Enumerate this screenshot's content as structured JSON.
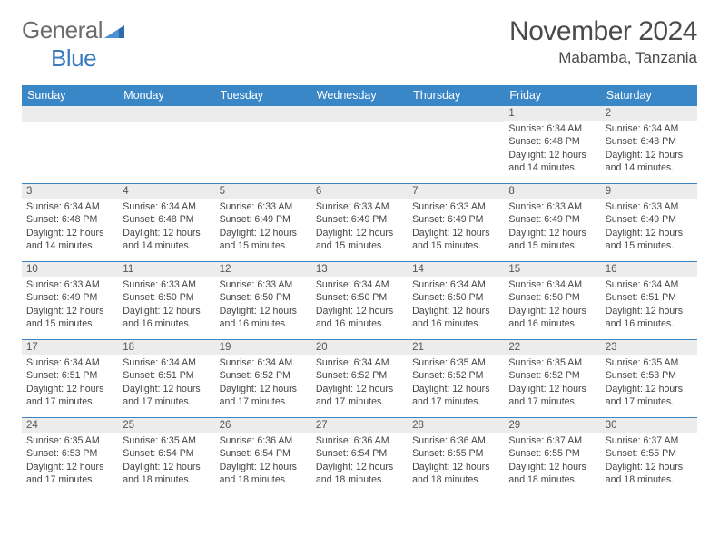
{
  "logo": {
    "text1": "General",
    "text2": "Blue"
  },
  "title": "November 2024",
  "location": "Mabamba, Tanzania",
  "colors": {
    "header_bg": "#3a87c7",
    "header_text": "#ffffff",
    "row_border": "#3a87c7",
    "daynum_bg": "#ececec",
    "body_text": "#444444",
    "logo_gray": "#6c6c6c",
    "logo_blue": "#3a7bbf"
  },
  "days_of_week": [
    "Sunday",
    "Monday",
    "Tuesday",
    "Wednesday",
    "Thursday",
    "Friday",
    "Saturday"
  ],
  "weeks": [
    [
      {
        "n": "",
        "sr": "",
        "ss": "",
        "dl": ""
      },
      {
        "n": "",
        "sr": "",
        "ss": "",
        "dl": ""
      },
      {
        "n": "",
        "sr": "",
        "ss": "",
        "dl": ""
      },
      {
        "n": "",
        "sr": "",
        "ss": "",
        "dl": ""
      },
      {
        "n": "",
        "sr": "",
        "ss": "",
        "dl": ""
      },
      {
        "n": "1",
        "sr": "Sunrise: 6:34 AM",
        "ss": "Sunset: 6:48 PM",
        "dl": "Daylight: 12 hours and 14 minutes."
      },
      {
        "n": "2",
        "sr": "Sunrise: 6:34 AM",
        "ss": "Sunset: 6:48 PM",
        "dl": "Daylight: 12 hours and 14 minutes."
      }
    ],
    [
      {
        "n": "3",
        "sr": "Sunrise: 6:34 AM",
        "ss": "Sunset: 6:48 PM",
        "dl": "Daylight: 12 hours and 14 minutes."
      },
      {
        "n": "4",
        "sr": "Sunrise: 6:34 AM",
        "ss": "Sunset: 6:48 PM",
        "dl": "Daylight: 12 hours and 14 minutes."
      },
      {
        "n": "5",
        "sr": "Sunrise: 6:33 AM",
        "ss": "Sunset: 6:49 PM",
        "dl": "Daylight: 12 hours and 15 minutes."
      },
      {
        "n": "6",
        "sr": "Sunrise: 6:33 AM",
        "ss": "Sunset: 6:49 PM",
        "dl": "Daylight: 12 hours and 15 minutes."
      },
      {
        "n": "7",
        "sr": "Sunrise: 6:33 AM",
        "ss": "Sunset: 6:49 PM",
        "dl": "Daylight: 12 hours and 15 minutes."
      },
      {
        "n": "8",
        "sr": "Sunrise: 6:33 AM",
        "ss": "Sunset: 6:49 PM",
        "dl": "Daylight: 12 hours and 15 minutes."
      },
      {
        "n": "9",
        "sr": "Sunrise: 6:33 AM",
        "ss": "Sunset: 6:49 PM",
        "dl": "Daylight: 12 hours and 15 minutes."
      }
    ],
    [
      {
        "n": "10",
        "sr": "Sunrise: 6:33 AM",
        "ss": "Sunset: 6:49 PM",
        "dl": "Daylight: 12 hours and 15 minutes."
      },
      {
        "n": "11",
        "sr": "Sunrise: 6:33 AM",
        "ss": "Sunset: 6:50 PM",
        "dl": "Daylight: 12 hours and 16 minutes."
      },
      {
        "n": "12",
        "sr": "Sunrise: 6:33 AM",
        "ss": "Sunset: 6:50 PM",
        "dl": "Daylight: 12 hours and 16 minutes."
      },
      {
        "n": "13",
        "sr": "Sunrise: 6:34 AM",
        "ss": "Sunset: 6:50 PM",
        "dl": "Daylight: 12 hours and 16 minutes."
      },
      {
        "n": "14",
        "sr": "Sunrise: 6:34 AM",
        "ss": "Sunset: 6:50 PM",
        "dl": "Daylight: 12 hours and 16 minutes."
      },
      {
        "n": "15",
        "sr": "Sunrise: 6:34 AM",
        "ss": "Sunset: 6:50 PM",
        "dl": "Daylight: 12 hours and 16 minutes."
      },
      {
        "n": "16",
        "sr": "Sunrise: 6:34 AM",
        "ss": "Sunset: 6:51 PM",
        "dl": "Daylight: 12 hours and 16 minutes."
      }
    ],
    [
      {
        "n": "17",
        "sr": "Sunrise: 6:34 AM",
        "ss": "Sunset: 6:51 PM",
        "dl": "Daylight: 12 hours and 17 minutes."
      },
      {
        "n": "18",
        "sr": "Sunrise: 6:34 AM",
        "ss": "Sunset: 6:51 PM",
        "dl": "Daylight: 12 hours and 17 minutes."
      },
      {
        "n": "19",
        "sr": "Sunrise: 6:34 AM",
        "ss": "Sunset: 6:52 PM",
        "dl": "Daylight: 12 hours and 17 minutes."
      },
      {
        "n": "20",
        "sr": "Sunrise: 6:34 AM",
        "ss": "Sunset: 6:52 PM",
        "dl": "Daylight: 12 hours and 17 minutes."
      },
      {
        "n": "21",
        "sr": "Sunrise: 6:35 AM",
        "ss": "Sunset: 6:52 PM",
        "dl": "Daylight: 12 hours and 17 minutes."
      },
      {
        "n": "22",
        "sr": "Sunrise: 6:35 AM",
        "ss": "Sunset: 6:52 PM",
        "dl": "Daylight: 12 hours and 17 minutes."
      },
      {
        "n": "23",
        "sr": "Sunrise: 6:35 AM",
        "ss": "Sunset: 6:53 PM",
        "dl": "Daylight: 12 hours and 17 minutes."
      }
    ],
    [
      {
        "n": "24",
        "sr": "Sunrise: 6:35 AM",
        "ss": "Sunset: 6:53 PM",
        "dl": "Daylight: 12 hours and 17 minutes."
      },
      {
        "n": "25",
        "sr": "Sunrise: 6:35 AM",
        "ss": "Sunset: 6:54 PM",
        "dl": "Daylight: 12 hours and 18 minutes."
      },
      {
        "n": "26",
        "sr": "Sunrise: 6:36 AM",
        "ss": "Sunset: 6:54 PM",
        "dl": "Daylight: 12 hours and 18 minutes."
      },
      {
        "n": "27",
        "sr": "Sunrise: 6:36 AM",
        "ss": "Sunset: 6:54 PM",
        "dl": "Daylight: 12 hours and 18 minutes."
      },
      {
        "n": "28",
        "sr": "Sunrise: 6:36 AM",
        "ss": "Sunset: 6:55 PM",
        "dl": "Daylight: 12 hours and 18 minutes."
      },
      {
        "n": "29",
        "sr": "Sunrise: 6:37 AM",
        "ss": "Sunset: 6:55 PM",
        "dl": "Daylight: 12 hours and 18 minutes."
      },
      {
        "n": "30",
        "sr": "Sunrise: 6:37 AM",
        "ss": "Sunset: 6:55 PM",
        "dl": "Daylight: 12 hours and 18 minutes."
      }
    ]
  ]
}
